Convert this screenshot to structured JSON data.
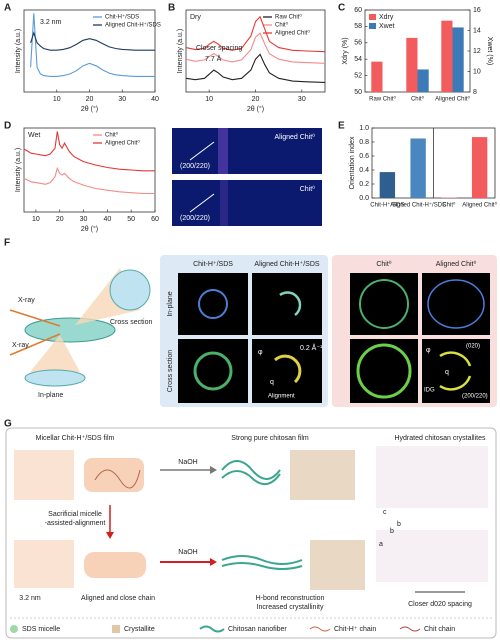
{
  "chart_data": [
    {
      "type": "line",
      "label": "A",
      "xlabel": "2θ (°)",
      "ylabel": "Intensity (a.u.)",
      "legend": "upper right",
      "annotations": [
        "3.2 nm"
      ],
      "x": [
        2,
        3,
        4,
        5,
        6,
        8,
        10,
        12,
        14,
        16,
        18,
        20,
        22,
        24,
        26,
        28,
        30,
        34,
        38,
        40
      ],
      "xlim": [
        0,
        40
      ],
      "xticks": [
        10,
        20,
        30,
        40
      ],
      "ylim": [
        0,
        10
      ],
      "series": [
        {
          "name": "Chit-H⁺/SDS",
          "color": "#5b9bd5",
          "values": [
            3.0,
            9.6,
            3.0,
            2.2,
            2.0,
            1.9,
            1.9,
            2.0,
            2.2,
            2.6,
            3.2,
            3.5,
            3.2,
            2.7,
            2.3,
            2.1,
            2.0,
            1.9,
            1.9,
            1.9
          ]
        },
        {
          "name": "Aligned Chit-H⁺/SDS",
          "color": "#1f3a5f",
          "values": [
            6.0,
            7.2,
            6.0,
            5.6,
            5.3,
            5.1,
            5.1,
            5.2,
            5.4,
            5.8,
            6.3,
            6.5,
            6.3,
            5.9,
            5.5,
            5.3,
            5.2,
            5.1,
            5.1,
            5.1
          ]
        }
      ]
    },
    {
      "type": "line",
      "label": "B",
      "tag": "Dry",
      "xlabel": "2θ (°)",
      "ylabel": "Intensity (a.u.)",
      "legend": "upper right",
      "annotations": [
        "Closer spacing",
        "7.7 Å"
      ],
      "x": [
        5,
        7,
        9,
        10,
        11,
        12,
        13,
        15,
        17,
        19,
        20,
        21,
        22,
        23,
        25,
        28,
        31,
        35
      ],
      "xlim": [
        5,
        35
      ],
      "xticks": [
        10,
        20,
        30
      ],
      "ylim": [
        0,
        12
      ],
      "series": [
        {
          "name": "Raw Chit⁰",
          "color": "#222222",
          "values": [
            2.0,
            1.8,
            2.0,
            2.6,
            3.2,
            2.8,
            2.2,
            1.8,
            2.0,
            3.2,
            4.8,
            5.5,
            4.0,
            2.8,
            2.0,
            1.6,
            1.5,
            1.4
          ]
        },
        {
          "name": "Chit⁰",
          "color": "#f28b8b",
          "values": [
            4.8,
            4.5,
            4.7,
            5.2,
            5.6,
            5.2,
            4.7,
            4.4,
            4.7,
            6.2,
            8.0,
            8.6,
            7.0,
            5.6,
            4.8,
            4.4,
            4.3,
            4.2
          ]
        },
        {
          "name": "Aligned Chit⁰",
          "color": "#e53935",
          "values": [
            6.5,
            6.2,
            6.4,
            7.0,
            7.4,
            7.0,
            6.4,
            6.1,
            6.4,
            8.2,
            10.3,
            11.0,
            9.2,
            7.4,
            6.5,
            6.1,
            6.0,
            5.9
          ]
        }
      ]
    },
    {
      "type": "bar",
      "label": "C",
      "ylabel": "Xdry (%)",
      "y2label": "Xwet (%)",
      "legend": "upper left",
      "categories": [
        "Raw Chit⁰",
        "Chit⁰",
        "Aligned Chit⁰"
      ],
      "ylim": [
        50,
        60
      ],
      "yticks": [
        50,
        52,
        54,
        56,
        58,
        60
      ],
      "y2lim": [
        8,
        16
      ],
      "y2ticks": [
        8,
        10,
        12,
        14,
        16
      ],
      "series": [
        {
          "name": "Xdry",
          "color": "#f25c5c",
          "values": [
            53.7,
            56.6,
            58.7
          ]
        },
        {
          "name": "Xwet",
          "color": "#3d7ab8",
          "axis": "y2",
          "values": [
            null,
            10.2,
            14.3
          ]
        }
      ]
    },
    {
      "type": "line",
      "label": "D",
      "tag": "Wet",
      "xlabel": "2θ (°)",
      "ylabel": "Intensity (a.u.)",
      "legend": "upper right",
      "x": [
        5,
        8,
        10,
        12,
        14,
        16,
        18,
        19,
        20,
        21,
        22,
        24,
        26,
        28,
        30,
        35,
        40,
        45,
        50,
        55,
        60
      ],
      "xlim": [
        5,
        60
      ],
      "xticks": [
        10,
        20,
        30,
        40,
        50,
        60
      ],
      "ylim": [
        0,
        10
      ],
      "series": [
        {
          "name": "Chit⁰",
          "color": "#f28b8b",
          "values": [
            4.0,
            3.6,
            3.5,
            3.4,
            3.3,
            3.5,
            4.2,
            5.2,
            4.6,
            4.4,
            4.6,
            4.0,
            3.6,
            3.4,
            3.2,
            2.8,
            2.6,
            2.4,
            2.3,
            2.2,
            2.2
          ]
        },
        {
          "name": "Aligned Chit⁰",
          "color": "#e53935",
          "values": [
            7.5,
            7.0,
            6.9,
            6.8,
            6.7,
            6.9,
            7.6,
            9.6,
            8.0,
            7.6,
            8.2,
            7.2,
            6.6,
            6.3,
            6.0,
            5.6,
            5.3,
            5.1,
            5.0,
            4.9,
            4.9
          ]
        }
      ]
    },
    {
      "type": "bar",
      "label": "E",
      "ylabel": "Orientation index",
      "categories": [
        "Chit-H⁺/SDS",
        "Aligned Chit-H⁺/SDS",
        "Chit⁰",
        "Aligned Chit⁰"
      ],
      "values": [
        0.37,
        0.85,
        0.01,
        0.87
      ],
      "colors": [
        "#2e5f8f",
        "#4a86c0",
        "#f4a3a3",
        "#f25c5c"
      ],
      "ylim": [
        0,
        1
      ],
      "yticks": [
        {
          "value": 0,
          "label": "0.0"
        },
        0.2,
        0.4,
        0.6,
        0.8,
        {
          "value": 1,
          "label": "1.0"
        }
      ]
    }
  ],
  "images": {
    "top": "Aligned Chit⁰",
    "top_peak": "(200/220)",
    "bottom": "Chit⁰",
    "bottom_peak": "(200/220)"
  },
  "panel_f": {
    "label": "F",
    "xray": [
      "X-ray",
      "X-ray"
    ],
    "cross_section": "Cross section",
    "in_plane": "In-plane",
    "left_cols": [
      "Chit-H⁺/SDS",
      "Aligned  Chit-H⁺/SDS"
    ],
    "rows": [
      "In-plane",
      "Cross section"
    ],
    "left_marks": [
      "φ",
      "q",
      "0.2 Å⁻¹",
      "Alignment"
    ],
    "right_cols": [
      "Chit⁰",
      "Aligned Chit⁰"
    ],
    "right_marks": [
      "φ",
      "q",
      "(020)",
      "IDG",
      "(200/220)"
    ]
  },
  "panel_g": {
    "label": "G",
    "headers": [
      "Micellar Chit-H⁺/SDS film",
      "Strong pure chitosan film",
      "Hydrated chitosan crystallites"
    ],
    "naoh": [
      "NaOH",
      "NaOH"
    ],
    "sacrificial": [
      "Sacrificial micelle",
      "-assisted-alignment"
    ],
    "spacing": "3.2 nm",
    "aligned": "Aligned and close chain",
    "reconstruction": [
      "H-bond reconstruction",
      "Increased crystallinity"
    ],
    "axes": [
      "c",
      "b",
      "b",
      "a"
    ],
    "closer": "Closer d020 spacing",
    "legend": [
      "SDS micelle",
      "Crystallite",
      "Chitosan nanofiber",
      "Chit-H⁺ chain",
      "Chit chain"
    ]
  }
}
